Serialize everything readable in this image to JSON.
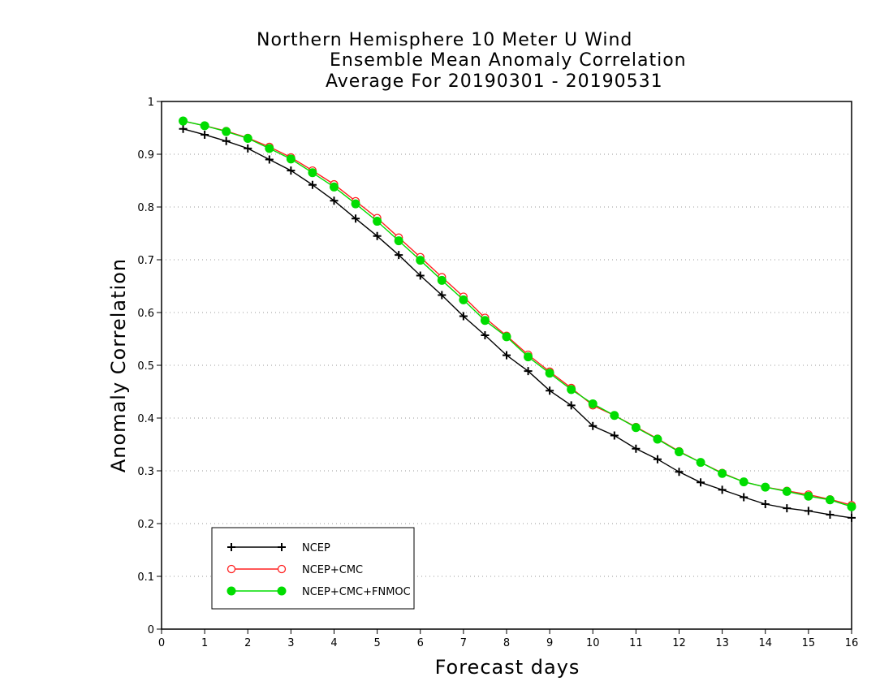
{
  "chart_data": {
    "type": "line",
    "title_lines": [
      "Northern Hemisphere 10 Meter U Wind",
      "Ensemble Mean Anomaly Correlation",
      "Average For 20190301 - 20190531"
    ],
    "xlabel": "Forecast days",
    "ylabel": "Anomaly Correlation",
    "xlim": [
      0,
      16
    ],
    "ylim": [
      0,
      1
    ],
    "x_ticks": [
      "0",
      "1",
      "2",
      "3",
      "4",
      "5",
      "6",
      "7",
      "8",
      "9",
      "10",
      "11",
      "12",
      "13",
      "14",
      "15",
      "16"
    ],
    "y_ticks": [
      "0",
      "0.1",
      "0.2",
      "0.3",
      "0.4",
      "0.5",
      "0.6",
      "0.7",
      "0.8",
      "0.9",
      "1"
    ],
    "grid": "horizontal dotted",
    "legend_position": "bottom-left",
    "x": [
      0.5,
      1,
      1.5,
      2,
      2.5,
      3,
      3.5,
      4,
      4.5,
      5,
      5.5,
      6,
      6.5,
      7,
      7.5,
      8,
      8.5,
      9,
      9.5,
      10,
      10.5,
      11,
      11.5,
      12,
      12.5,
      13,
      13.5,
      14,
      14.5,
      15,
      15.5,
      16
    ],
    "series": [
      {
        "name": "NCEP",
        "color": "#000000",
        "marker": "plus",
        "values": [
          0.948,
          0.937,
          0.925,
          0.911,
          0.89,
          0.869,
          0.842,
          0.812,
          0.778,
          0.745,
          0.709,
          0.67,
          0.633,
          0.593,
          0.557,
          0.519,
          0.489,
          0.452,
          0.424,
          0.385,
          0.367,
          0.342,
          0.322,
          0.298,
          0.278,
          0.264,
          0.25,
          0.237,
          0.229,
          0.224,
          0.217,
          0.211
        ]
      },
      {
        "name": "NCEP+CMC",
        "color": "#ff2020",
        "marker": "open-circle",
        "values": [
          0.963,
          0.954,
          0.944,
          0.931,
          0.914,
          0.894,
          0.869,
          0.843,
          0.811,
          0.779,
          0.742,
          0.705,
          0.667,
          0.63,
          0.59,
          0.556,
          0.52,
          0.488,
          0.457,
          0.424,
          0.405,
          0.383,
          0.361,
          0.337,
          0.316,
          0.296,
          0.279,
          0.269,
          0.262,
          0.255,
          0.246,
          0.235
        ]
      },
      {
        "name": "NCEP+CMC+FNMOC",
        "color": "#00dd00",
        "marker": "filled-circle",
        "values": [
          0.963,
          0.954,
          0.943,
          0.93,
          0.911,
          0.891,
          0.865,
          0.838,
          0.806,
          0.773,
          0.736,
          0.699,
          0.661,
          0.624,
          0.585,
          0.554,
          0.516,
          0.485,
          0.454,
          0.427,
          0.405,
          0.382,
          0.36,
          0.336,
          0.316,
          0.295,
          0.279,
          0.269,
          0.261,
          0.252,
          0.245,
          0.232
        ]
      }
    ]
  }
}
